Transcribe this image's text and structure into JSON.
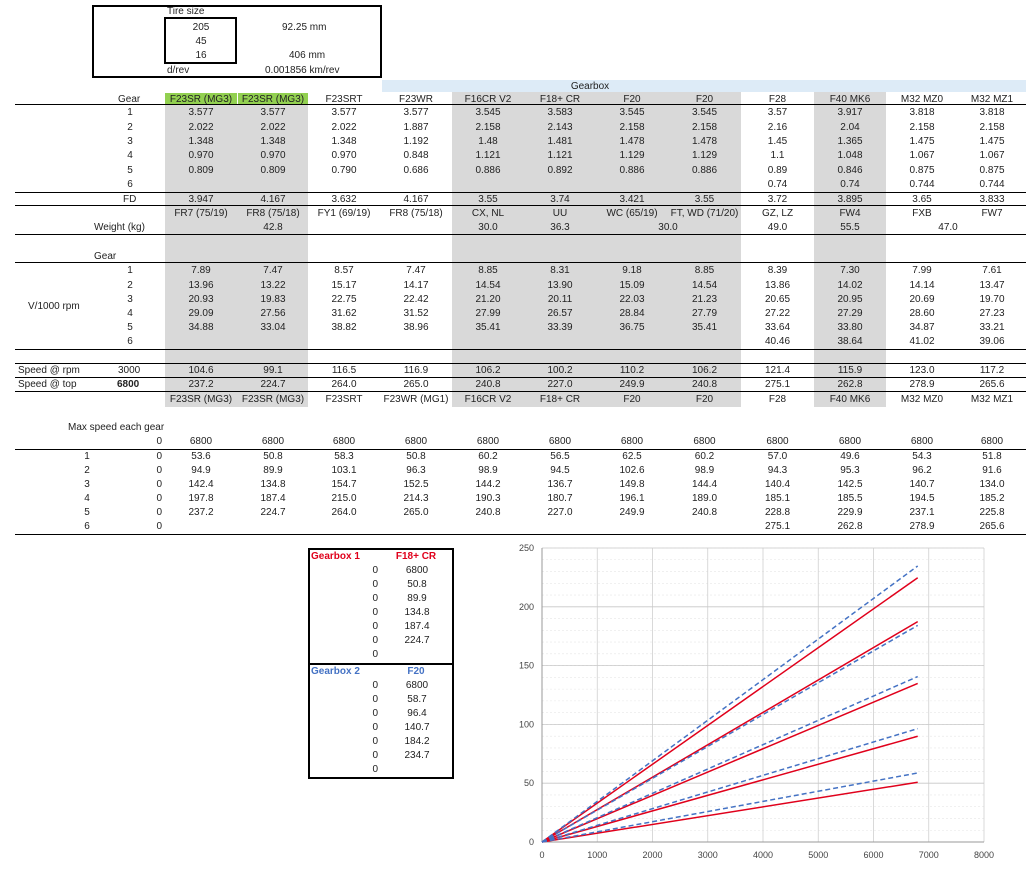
{
  "tire": {
    "label": "Tire size",
    "width": "205",
    "aspect": "45",
    "rim": "16",
    "sidewall": "92.25 mm",
    "radius": "406 mm",
    "drev_label": "d/rev",
    "drev": "0.001856 km/rev"
  },
  "gearbox_title": "Gearbox",
  "labels": {
    "gear": "Gear",
    "fd": "FD",
    "weight": "Weight (kg)",
    "gear2": "Gear",
    "v1000": "V/1000 rpm",
    "speed_rpm": "Speed @ rpm",
    "speed_top": "Speed @ top",
    "rpm_val": "3000",
    "top_val": "6800",
    "max_speed": "Max speed each gear"
  },
  "gear_numbers": [
    "1",
    "2",
    "3",
    "4",
    "5",
    "6"
  ],
  "gearboxes": [
    {
      "name": "F23SR (MG3)",
      "ratios": [
        "3.577",
        "2.022",
        "1.348",
        "0.970",
        "0.809",
        ""
      ],
      "fd": "3.947",
      "code": "FR7 (75/19)",
      "v": [
        "7.89",
        "13.96",
        "20.93",
        "29.09",
        "34.88",
        ""
      ],
      "speed_rpm": "104.6",
      "speed_top": "237.2",
      "name2": "F23SR (MG3)",
      "maxgear": [
        "53.6",
        "94.9",
        "142.4",
        "197.8",
        "237.2",
        ""
      ]
    },
    {
      "name": "F23SR (MG3)",
      "ratios": [
        "3.577",
        "2.022",
        "1.348",
        "0.970",
        "0.809",
        ""
      ],
      "fd": "4.167",
      "code": "FR8 (75/18)",
      "v": [
        "7.47",
        "13.22",
        "19.83",
        "27.56",
        "33.04",
        ""
      ],
      "speed_rpm": "99.1",
      "speed_top": "224.7",
      "name2": "F23SR (MG3)",
      "maxgear": [
        "50.8",
        "89.9",
        "134.8",
        "187.4",
        "224.7",
        ""
      ]
    },
    {
      "name": "F23SRT",
      "ratios": [
        "3.577",
        "2.022",
        "1.348",
        "0.970",
        "0.790",
        ""
      ],
      "fd": "3.632",
      "code": "FY1 (69/19)",
      "v": [
        "8.57",
        "15.17",
        "22.75",
        "31.62",
        "38.82",
        ""
      ],
      "speed_rpm": "116.5",
      "speed_top": "264.0",
      "name2": "F23SRT",
      "maxgear": [
        "58.3",
        "103.1",
        "154.7",
        "215.0",
        "264.0",
        ""
      ]
    },
    {
      "name": "F23WR",
      "ratios": [
        "3.577",
        "1.887",
        "1.192",
        "0.848",
        "0.686",
        ""
      ],
      "fd": "4.167",
      "code": "FR8 (75/18)",
      "v": [
        "7.47",
        "14.17",
        "22.42",
        "31.52",
        "38.96",
        ""
      ],
      "speed_rpm": "116.9",
      "speed_top": "265.0",
      "name2": "F23WR (MG1)",
      "maxgear": [
        "50.8",
        "96.3",
        "152.5",
        "214.3",
        "265.0",
        ""
      ]
    },
    {
      "name": "F16CR V2",
      "ratios": [
        "3.545",
        "2.158",
        "1.48",
        "1.121",
        "0.886",
        ""
      ],
      "fd": "3.55",
      "code": "CX, NL",
      "v": [
        "8.85",
        "14.54",
        "21.20",
        "27.99",
        "35.41",
        ""
      ],
      "speed_rpm": "106.2",
      "speed_top": "240.8",
      "name2": "F16CR V2",
      "maxgear": [
        "60.2",
        "98.9",
        "144.2",
        "190.3",
        "240.8",
        ""
      ]
    },
    {
      "name": "F18+ CR",
      "ratios": [
        "3.583",
        "2.143",
        "1.481",
        "1.121",
        "0.892",
        ""
      ],
      "fd": "3.74",
      "code": "UU",
      "v": [
        "8.31",
        "13.90",
        "20.11",
        "26.57",
        "33.39",
        ""
      ],
      "speed_rpm": "100.2",
      "speed_top": "227.0",
      "name2": "F18+ CR",
      "maxgear": [
        "56.5",
        "94.5",
        "136.7",
        "180.7",
        "227.0",
        ""
      ]
    },
    {
      "name": "F20",
      "ratios": [
        "3.545",
        "2.158",
        "1.478",
        "1.129",
        "0.886",
        ""
      ],
      "fd": "3.421",
      "code": "WC (65/19)",
      "v": [
        "9.18",
        "15.09",
        "22.03",
        "28.84",
        "36.75",
        ""
      ],
      "speed_rpm": "110.2",
      "speed_top": "249.9",
      "name2": "F20",
      "maxgear": [
        "62.5",
        "102.6",
        "149.8",
        "196.1",
        "249.9",
        ""
      ]
    },
    {
      "name": "F20",
      "ratios": [
        "3.545",
        "2.158",
        "1.478",
        "1.129",
        "0.886",
        ""
      ],
      "fd": "3.55",
      "code": "FT, WD (71/20)",
      "v": [
        "8.85",
        "14.54",
        "21.23",
        "27.79",
        "35.41",
        ""
      ],
      "speed_rpm": "106.2",
      "speed_top": "240.8",
      "name2": "F20",
      "maxgear": [
        "60.2",
        "98.9",
        "144.4",
        "189.0",
        "240.8",
        ""
      ]
    },
    {
      "name": "F28",
      "ratios": [
        "3.57",
        "2.16",
        "1.45",
        "1.1",
        "0.89",
        "0.74"
      ],
      "fd": "3.72",
      "code": "GZ, LZ",
      "v": [
        "8.39",
        "13.86",
        "20.65",
        "27.22",
        "33.64",
        "40.46"
      ],
      "speed_rpm": "121.4",
      "speed_top": "275.1",
      "name2": "F28",
      "maxgear": [
        "57.0",
        "94.3",
        "140.4",
        "185.1",
        "228.8",
        "275.1"
      ]
    },
    {
      "name": "F40 MK6",
      "ratios": [
        "3.917",
        "2.04",
        "1.365",
        "1.048",
        "0.846",
        "0.74"
      ],
      "fd": "3.895",
      "code": "FW4",
      "v": [
        "7.30",
        "14.02",
        "20.95",
        "27.29",
        "33.80",
        "38.64"
      ],
      "speed_rpm": "115.9",
      "speed_top": "262.8",
      "name2": "F40 MK6",
      "maxgear": [
        "49.6",
        "95.3",
        "142.5",
        "185.5",
        "229.9",
        "262.8"
      ]
    },
    {
      "name": "M32 MZ0",
      "ratios": [
        "3.818",
        "2.158",
        "1.475",
        "1.067",
        "0.875",
        "0.744"
      ],
      "fd": "3.65",
      "code": "FXB",
      "v": [
        "7.99",
        "14.14",
        "20.69",
        "28.60",
        "34.87",
        "41.02"
      ],
      "speed_rpm": "123.0",
      "speed_top": "278.9",
      "name2": "M32 MZ0",
      "maxgear": [
        "54.3",
        "96.2",
        "140.7",
        "194.5",
        "237.1",
        "278.9"
      ]
    },
    {
      "name": "M32 MZ1",
      "ratios": [
        "3.818",
        "2.158",
        "1.475",
        "1.067",
        "0.875",
        "0.744"
      ],
      "fd": "3.833",
      "code": "FW7",
      "v": [
        "7.61",
        "13.47",
        "19.70",
        "27.23",
        "33.21",
        "39.06"
      ],
      "speed_rpm": "117.2",
      "speed_top": "265.6",
      "name2": "M32 MZ1",
      "maxgear": [
        "51.8",
        "91.6",
        "134.0",
        "185.2",
        "225.8",
        "265.6"
      ]
    }
  ],
  "weights": {
    "w1": "42.8",
    "w2": "30.0",
    "w3": "36.3",
    "w4": "30.0",
    "w5": "49.0",
    "w6": "55.5",
    "w7": "47.0"
  },
  "max_rpm": "6800",
  "zero": "0",
  "compare": {
    "gb1_label": "Gearbox 1",
    "gb1_name": "F18+ CR",
    "gb1_values": [
      "6800",
      "50.8",
      "89.9",
      "134.8",
      "187.4",
      "224.7",
      ""
    ],
    "gb2_label": "Gearbox 2",
    "gb2_name": "F20",
    "gb2_values": [
      "6800",
      "58.7",
      "96.4",
      "140.7",
      "184.2",
      "234.7",
      ""
    ]
  },
  "chart_data": {
    "type": "line",
    "x_ticks": [
      0,
      1000,
      2000,
      3000,
      4000,
      5000,
      6000,
      7000,
      8000
    ],
    "y_ticks": [
      0,
      50,
      100,
      150,
      200,
      250
    ],
    "xlim": [
      0,
      8000
    ],
    "ylim": [
      0,
      250
    ],
    "grid": true,
    "series": [
      {
        "style": "solid",
        "color": "#e0001b",
        "points": [
          [
            0,
            0
          ],
          [
            6800,
            50.8
          ],
          [
            0,
            0
          ],
          [
            6800,
            89.9
          ],
          [
            0,
            0
          ],
          [
            6800,
            134.8
          ],
          [
            0,
            0
          ],
          [
            6800,
            187.4
          ],
          [
            0,
            0
          ],
          [
            6800,
            224.7
          ]
        ]
      },
      {
        "style": "dashed",
        "color": "#4472c4",
        "points": [
          [
            0,
            0
          ],
          [
            6800,
            58.7
          ],
          [
            0,
            0
          ],
          [
            6800,
            96.4
          ],
          [
            0,
            0
          ],
          [
            6800,
            140.7
          ],
          [
            0,
            0
          ],
          [
            6800,
            184.2
          ],
          [
            0,
            0
          ],
          [
            6800,
            234.7
          ]
        ]
      }
    ]
  }
}
